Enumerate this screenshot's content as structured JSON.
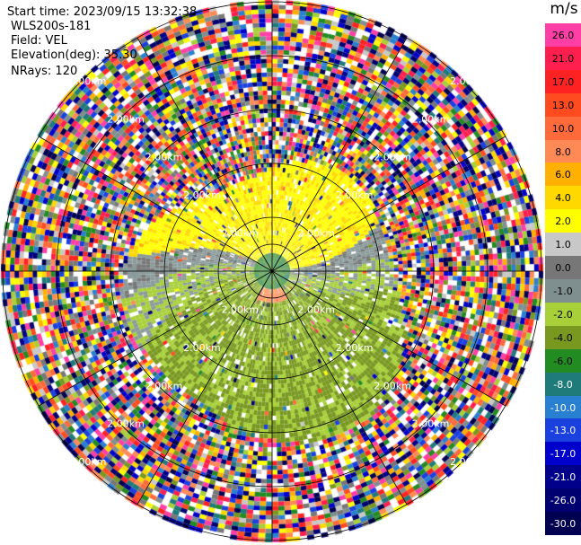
{
  "info": {
    "start_time": "Start time: 2023/09/15 13:32:38",
    "instrument": "WLS200s-181",
    "field": "Field: VEL",
    "elevation": "Elevation(deg): 35.30",
    "nrays": "NRays: 120"
  },
  "range_ring_label": "2.00km",
  "colorbar": {
    "unit": "m/s",
    "levels": [
      {
        "label": "26.0",
        "color": "#ff3fa6",
        "text": "#000000"
      },
      {
        "label": "21.0",
        "color": "#ff1f4e",
        "text": "#000000"
      },
      {
        "label": "17.0",
        "color": "#ff2222",
        "text": "#000000"
      },
      {
        "label": "13.0",
        "color": "#ff4b1f",
        "text": "#000000"
      },
      {
        "label": "10.0",
        "color": "#ff6a3a",
        "text": "#000000"
      },
      {
        "label": "8.0",
        "color": "#ff8a55",
        "text": "#000000"
      },
      {
        "label": "6.0",
        "color": "#ffb000",
        "text": "#000000"
      },
      {
        "label": "4.0",
        "color": "#ffd800",
        "text": "#000000"
      },
      {
        "label": "2.0",
        "color": "#ffff00",
        "text": "#000000"
      },
      {
        "label": "1.0",
        "color": "#c8c8c8",
        "text": "#000000"
      },
      {
        "label": "0.0",
        "color": "#777777",
        "text": "#000000"
      },
      {
        "label": "-1.0",
        "color": "#7f8f8f",
        "text": "#000000"
      },
      {
        "label": "-2.0",
        "color": "#a8d038",
        "text": "#000000"
      },
      {
        "label": "-4.0",
        "color": "#789820",
        "text": "#000000"
      },
      {
        "label": "-6.0",
        "color": "#228b22",
        "text": "#000000"
      },
      {
        "label": "-8.0",
        "color": "#1f7a7a",
        "text": "#ffffff"
      },
      {
        "label": "-10.0",
        "color": "#2a80d0",
        "text": "#ffffff"
      },
      {
        "label": "-13.0",
        "color": "#1a40e0",
        "text": "#ffffff"
      },
      {
        "label": "-17.0",
        "color": "#0000cd",
        "text": "#ffffff"
      },
      {
        "label": "-21.0",
        "color": "#00008b",
        "text": "#ffffff"
      },
      {
        "label": "-26.0",
        "color": "#000070",
        "text": "#ffffff"
      },
      {
        "label": "-30.0",
        "color": "#000050",
        "text": "#ffffff"
      }
    ]
  }
}
